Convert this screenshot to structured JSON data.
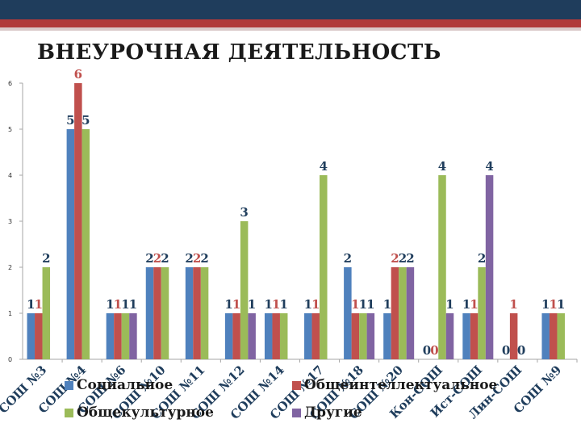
{
  "header": {
    "title": "ВНЕУРОЧНАЯ ДЕЯТЕЛЬНОСТЬ"
  },
  "colors": {
    "Социальное": "#4f81bd",
    "Общеинтеллектуальное": "#c0504d",
    "Общекультурное": "#9bbb59",
    "Другие": "#8064a2"
  },
  "chart_data": {
    "type": "bar",
    "title": "ВНЕУРОЧНАЯ ДЕЯТЕЛЬНОСТЬ",
    "ylim": [
      0,
      6
    ],
    "yticks": [
      0,
      1,
      2,
      3,
      4,
      5,
      6
    ],
    "grid": false,
    "legend_position": "bottom",
    "categories": [
      "СОШ №3",
      "СОШ №4",
      "СОШ №6",
      "СОШ №10",
      "СОШ №11",
      "СОШ №12",
      "СОШ №14",
      "СОШ №17",
      "СОШ №18",
      "СОШ №20",
      "Кон-СОШ",
      "Ист-СОШ",
      "Лин-СОШ",
      "СОШ №9"
    ],
    "series": [
      {
        "name": "Социальное",
        "values": [
          1,
          5,
          1,
          2,
          2,
          1,
          1,
          1,
          2,
          1,
          0,
          1,
          0,
          1
        ]
      },
      {
        "name": "Общеинтеллектуальное",
        "values": [
          1,
          6,
          1,
          2,
          2,
          1,
          1,
          1,
          1,
          2,
          0,
          1,
          1,
          1
        ]
      },
      {
        "name": "Общекультурное",
        "values": [
          2,
          5,
          1,
          2,
          2,
          3,
          1,
          4,
          1,
          2,
          4,
          2,
          0,
          1
        ]
      },
      {
        "name": "Другие",
        "values": [
          null,
          null,
          1,
          null,
          null,
          1,
          null,
          null,
          1,
          2,
          1,
          4,
          null,
          null
        ]
      }
    ]
  }
}
